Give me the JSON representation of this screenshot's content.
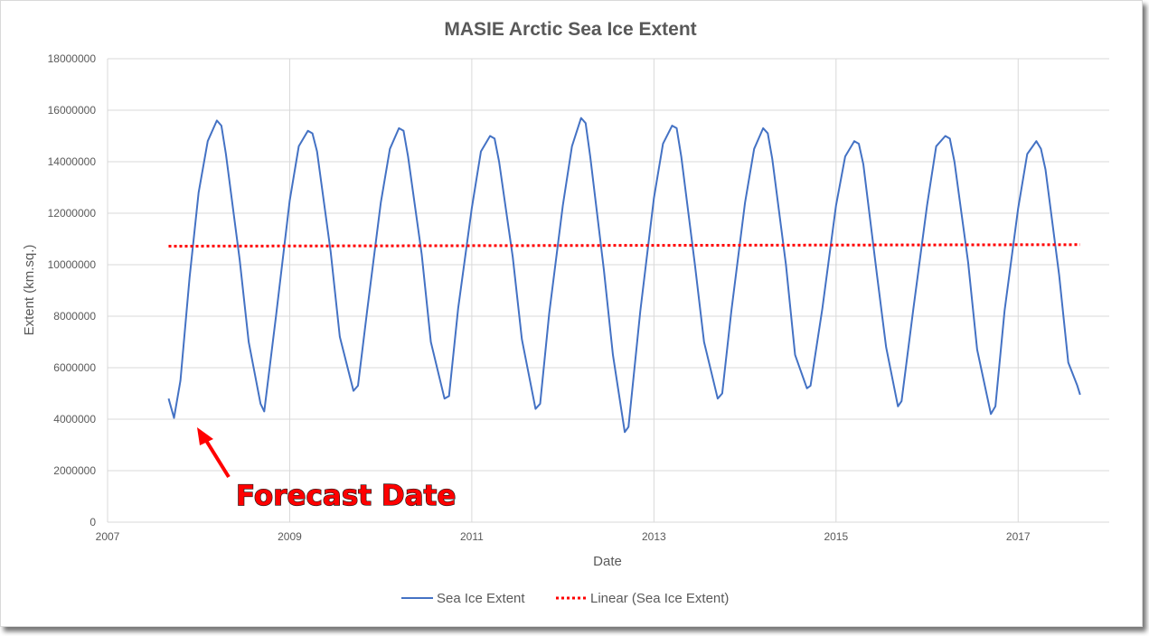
{
  "chart_data": {
    "type": "line",
    "title": "MASIE Arctic Sea Ice Extent",
    "xlabel": "Date",
    "ylabel": "Extent (km.sq.)",
    "xlim": [
      2007,
      2018
    ],
    "ylim": [
      0,
      18000000
    ],
    "x_ticks": [
      "2007",
      "2009",
      "2011",
      "2013",
      "2015",
      "2017"
    ],
    "y_ticks": [
      "0",
      "2000000",
      "4000000",
      "6000000",
      "8000000",
      "10000000",
      "12000000",
      "14000000",
      "16000000",
      "18000000"
    ],
    "grid": true,
    "legend_position": "bottom",
    "series": [
      {
        "name": "Sea Ice Extent",
        "color": "#4472c4",
        "style": "solid",
        "x": [
          2007.67,
          2007.73,
          2007.8,
          2007.9,
          2008.0,
          2008.1,
          2008.2,
          2008.25,
          2008.3,
          2008.45,
          2008.55,
          2008.68,
          2008.72,
          2008.85,
          2009.0,
          2009.1,
          2009.2,
          2009.25,
          2009.3,
          2009.45,
          2009.55,
          2009.7,
          2009.75,
          2009.85,
          2010.0,
          2010.1,
          2010.2,
          2010.25,
          2010.3,
          2010.45,
          2010.55,
          2010.7,
          2010.75,
          2010.85,
          2011.0,
          2011.1,
          2011.2,
          2011.25,
          2011.3,
          2011.45,
          2011.55,
          2011.7,
          2011.75,
          2011.85,
          2012.0,
          2012.1,
          2012.2,
          2012.25,
          2012.3,
          2012.45,
          2012.55,
          2012.68,
          2012.72,
          2012.85,
          2013.0,
          2013.1,
          2013.2,
          2013.25,
          2013.3,
          2013.45,
          2013.55,
          2013.7,
          2013.75,
          2013.85,
          2014.0,
          2014.1,
          2014.2,
          2014.25,
          2014.3,
          2014.45,
          2014.55,
          2014.68,
          2014.72,
          2014.85,
          2015.0,
          2015.1,
          2015.2,
          2015.25,
          2015.3,
          2015.45,
          2015.55,
          2015.68,
          2015.72,
          2015.85,
          2016.0,
          2016.1,
          2016.2,
          2016.25,
          2016.3,
          2016.45,
          2016.55,
          2016.7,
          2016.75,
          2016.85,
          2017.0,
          2017.1,
          2017.2,
          2017.25,
          2017.3,
          2017.45,
          2017.55,
          2017.65,
          2017.68
        ],
        "y": [
          4800000,
          4050000,
          5500000,
          9500000,
          12800000,
          14800000,
          15600000,
          15400000,
          14300000,
          10200000,
          7000000,
          4600000,
          4300000,
          8000000,
          12500000,
          14600000,
          15200000,
          15100000,
          14400000,
          10500000,
          7200000,
          5100000,
          5300000,
          8200000,
          12400000,
          14500000,
          15300000,
          15200000,
          14200000,
          10400000,
          7000000,
          4800000,
          4900000,
          8300000,
          12200000,
          14400000,
          15000000,
          14900000,
          14000000,
          10300000,
          7100000,
          4400000,
          4600000,
          8100000,
          12300000,
          14600000,
          15700000,
          15500000,
          14200000,
          9800000,
          6500000,
          3500000,
          3700000,
          8200000,
          12600000,
          14700000,
          15400000,
          15300000,
          14200000,
          10000000,
          7000000,
          4800000,
          5000000,
          8200000,
          12400000,
          14500000,
          15300000,
          15100000,
          14100000,
          10000000,
          6500000,
          5200000,
          5300000,
          8300000,
          12300000,
          14200000,
          14800000,
          14700000,
          13900000,
          9600000,
          6800000,
          4500000,
          4700000,
          8300000,
          12300000,
          14600000,
          15000000,
          14900000,
          14000000,
          10100000,
          6700000,
          4200000,
          4500000,
          8200000,
          12200000,
          14300000,
          14800000,
          14500000,
          13700000,
          9600000,
          6200000,
          5300000,
          4950000
        ]
      },
      {
        "name": "Linear (Sea Ice Extent)",
        "color": "#ff0000",
        "style": "dotted",
        "x": [
          2007.67,
          2017.68
        ],
        "y": [
          10720000,
          10780000
        ]
      }
    ],
    "annotations": [
      {
        "text": "Forecast Date",
        "color": "#ff0000",
        "points_to": [
          2007.73,
          4050000
        ]
      }
    ]
  }
}
